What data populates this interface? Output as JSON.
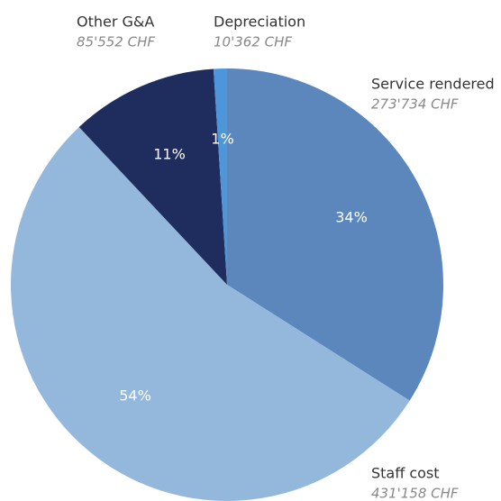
{
  "chart_data": {
    "type": "pie",
    "categories": [
      "Service rendered",
      "Staff cost",
      "Other G&A",
      "Depreciation"
    ],
    "values": [
      34,
      54,
      11,
      1
    ],
    "value_labels": [
      "34%",
      "54%",
      "11%",
      "1%"
    ],
    "amounts": [
      "273'734 CHF",
      "431'158 CHF",
      "85'552 CHF",
      "10'362 CHF"
    ],
    "colors": [
      "#5b87bd",
      "#94b8dc",
      "#1e2d5e",
      "#4d96d9"
    ]
  }
}
